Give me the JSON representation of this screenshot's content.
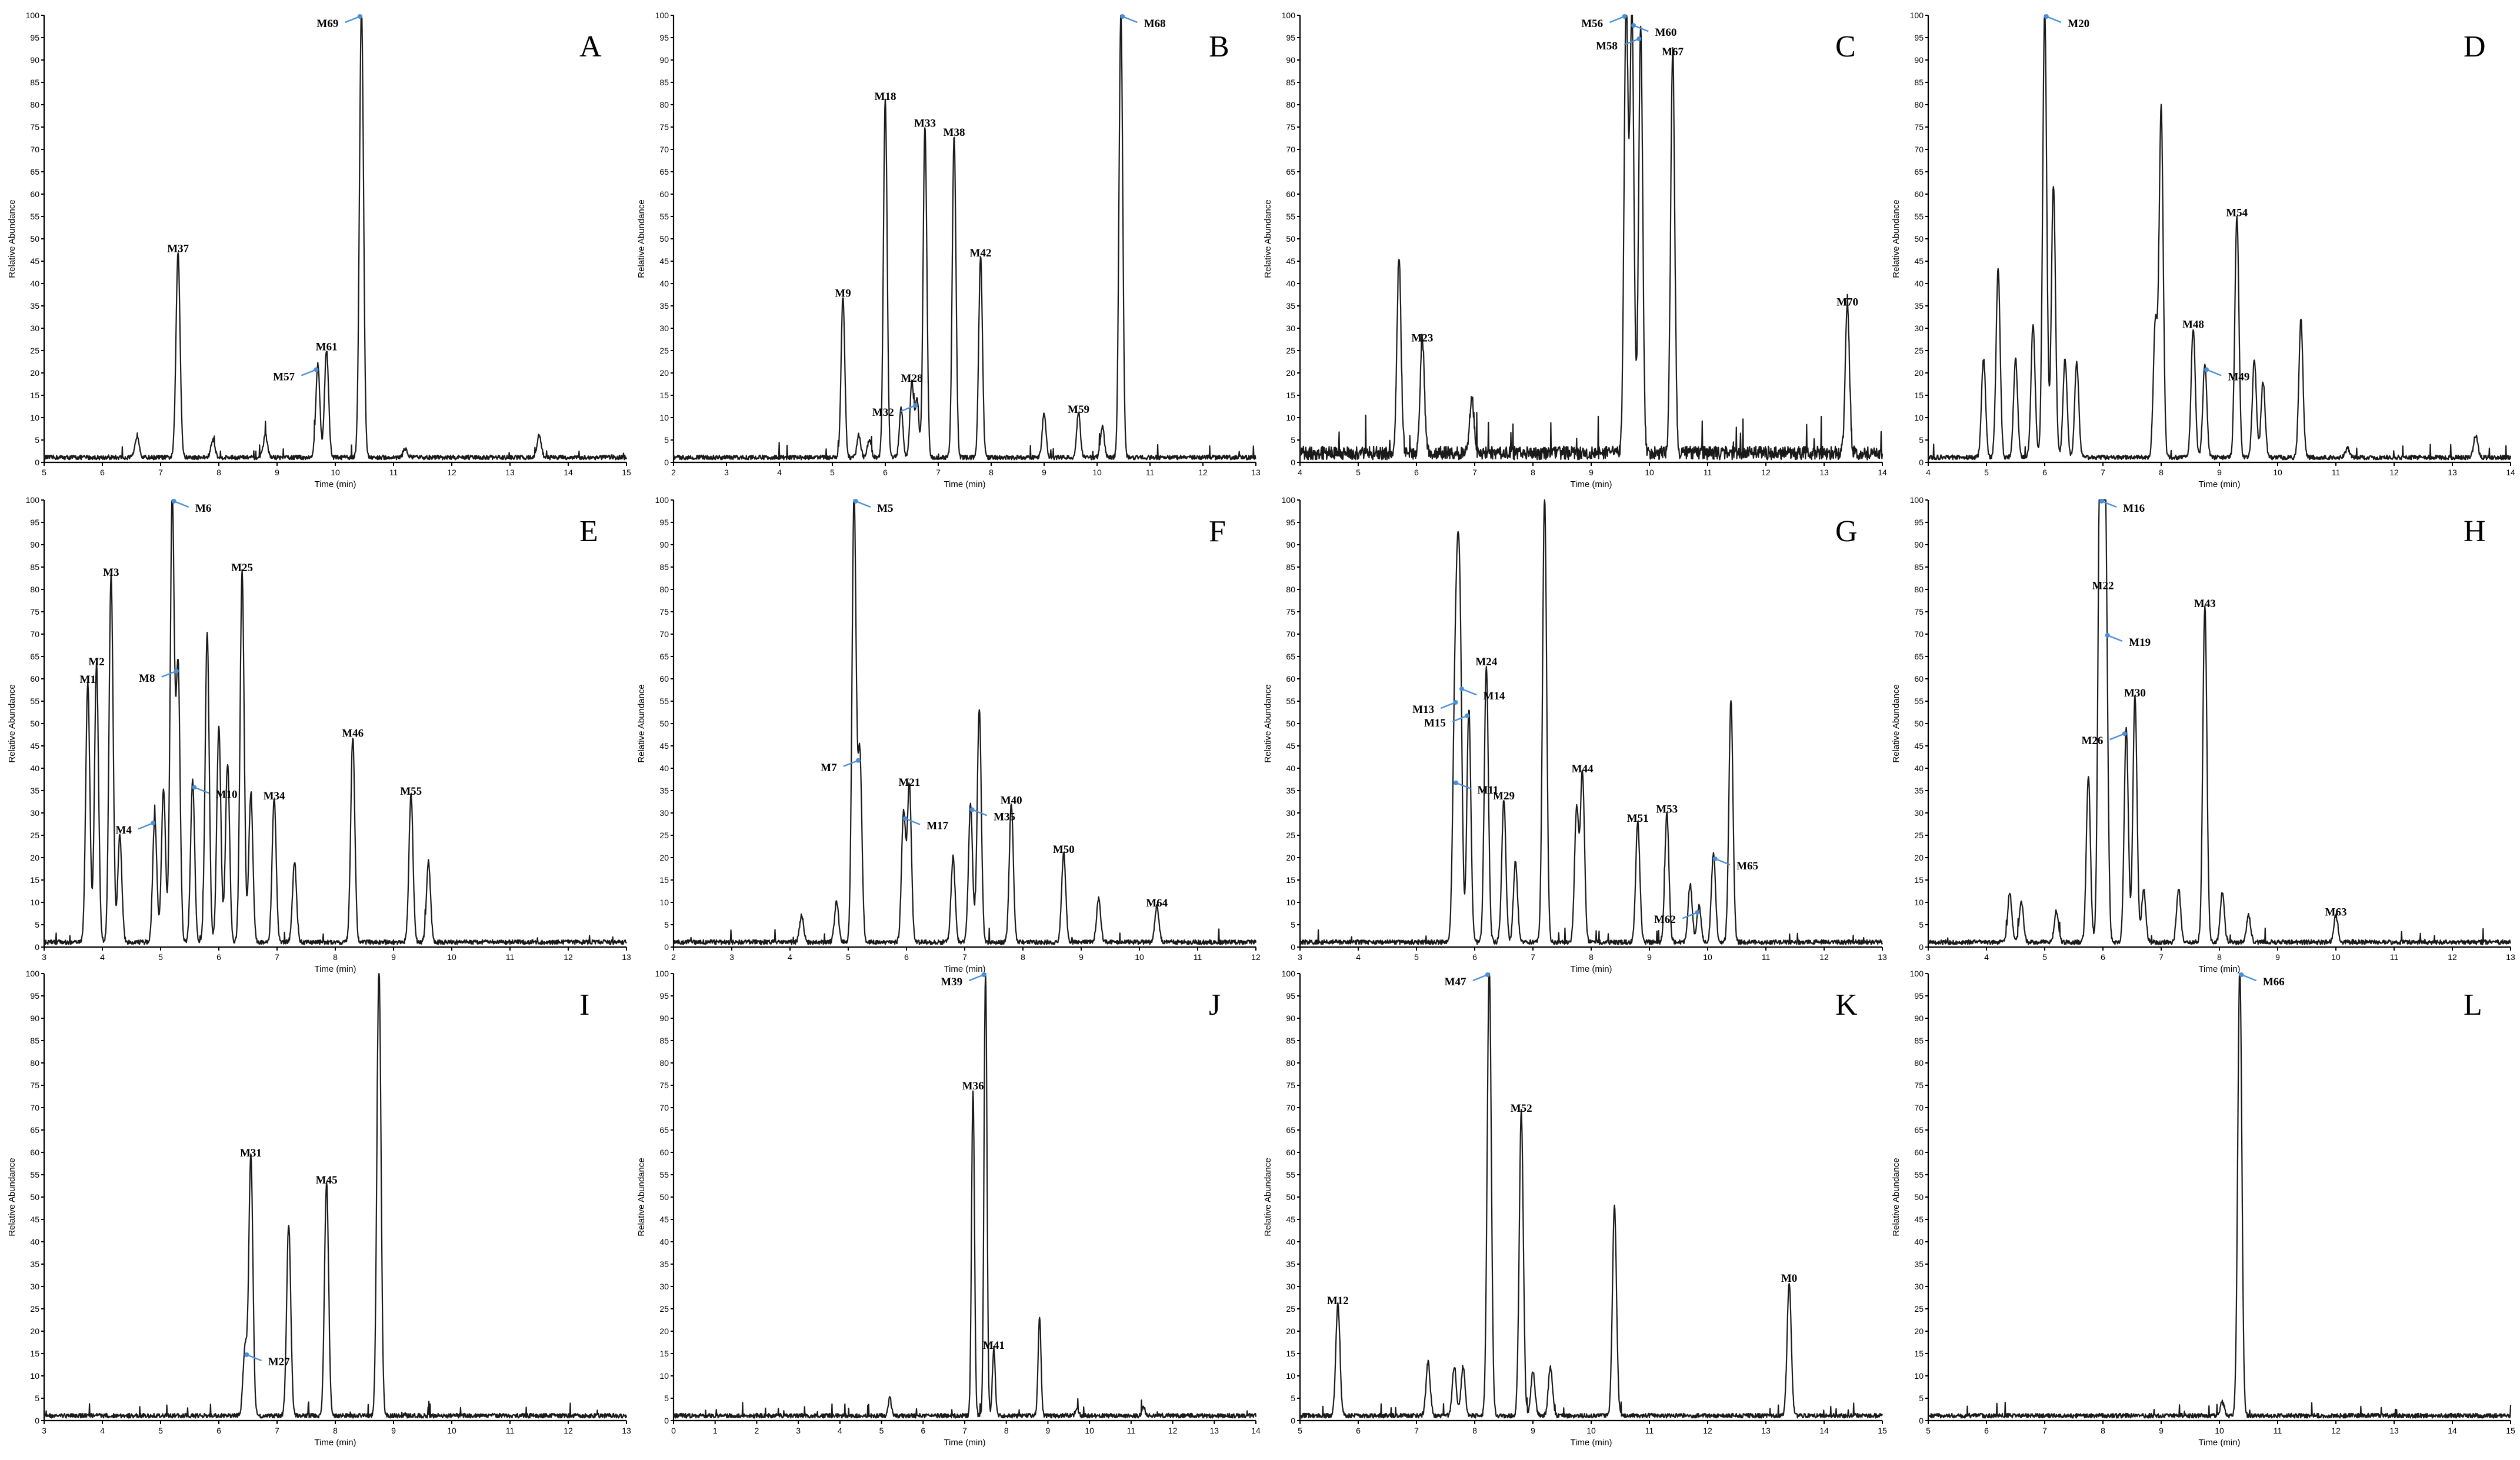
{
  "colors": {
    "trace": "#1a1a1a",
    "arrow": "#4a90d9",
    "axis": "#000000"
  },
  "chart_data": [
    {
      "type": "line",
      "panel": "A",
      "xlabel": "Time (min)",
      "ylabel": "Relative Abundance",
      "xlim": [
        5,
        15
      ],
      "ylim": [
        0,
        100
      ],
      "xticks": [
        "5",
        "6",
        "7",
        "8",
        "9",
        "10",
        "11",
        "12",
        "13",
        "14",
        "15"
      ],
      "peaks": [
        [
          6.6,
          5
        ],
        [
          7.3,
          46
        ],
        [
          7.9,
          4
        ],
        [
          8.8,
          5
        ],
        [
          9.7,
          21
        ],
        [
          9.85,
          24
        ],
        [
          10.45,
          100
        ],
        [
          11.2,
          2
        ],
        [
          13.5,
          5
        ]
      ],
      "labels": [
        {
          "text": "M37",
          "x": 7.3,
          "y": 46
        },
        {
          "text": "M57",
          "x": 9.7,
          "y": 21,
          "arrow": true
        },
        {
          "text": "M61",
          "x": 9.85,
          "y": 24
        },
        {
          "text": "M69",
          "x": 10.45,
          "y": 100,
          "arrow": true
        }
      ]
    },
    {
      "type": "line",
      "panel": "B",
      "xlabel": "Time (min)",
      "ylabel": "Relative Abundance",
      "xlim": [
        2,
        13
      ],
      "ylim": [
        0,
        100
      ],
      "xticks": [
        "2",
        "3",
        "4",
        "5",
        "6",
        "7",
        "8",
        "9",
        "10",
        "11",
        "12",
        "13"
      ],
      "peaks": [
        [
          5.2,
          36
        ],
        [
          5.5,
          5
        ],
        [
          5.7,
          4
        ],
        [
          6.0,
          80
        ],
        [
          6.3,
          11
        ],
        [
          6.5,
          17
        ],
        [
          6.6,
          13
        ],
        [
          6.75,
          74
        ],
        [
          7.3,
          72
        ],
        [
          7.8,
          45
        ],
        [
          9.0,
          10
        ],
        [
          9.65,
          10
        ],
        [
          10.1,
          7
        ],
        [
          10.45,
          100
        ]
      ],
      "labels": [
        {
          "text": "M9",
          "x": 5.2,
          "y": 36
        },
        {
          "text": "M18",
          "x": 6.0,
          "y": 80
        },
        {
          "text": "M28",
          "x": 6.5,
          "y": 17
        },
        {
          "text": "M32",
          "x": 6.6,
          "y": 13,
          "arrow": true
        },
        {
          "text": "M33",
          "x": 6.75,
          "y": 74
        },
        {
          "text": "M38",
          "x": 7.3,
          "y": 72
        },
        {
          "text": "M42",
          "x": 7.8,
          "y": 45
        },
        {
          "text": "M59",
          "x": 9.65,
          "y": 10
        },
        {
          "text": "M68",
          "x": 10.45,
          "y": 100,
          "arrow": true
        }
      ]
    },
    {
      "type": "line",
      "panel": "C",
      "xlabel": "Time (min)",
      "ylabel": "Relative Abundance",
      "xlim": [
        4,
        14
      ],
      "ylim": [
        0,
        100
      ],
      "xticks": [
        "4",
        "5",
        "6",
        "7",
        "8",
        "9",
        "10",
        "11",
        "12",
        "13",
        "14"
      ],
      "noise": 3,
      "peaks": [
        [
          5.7,
          44
        ],
        [
          6.1,
          26
        ],
        [
          6.95,
          13
        ],
        [
          9.6,
          100
        ],
        [
          9.7,
          98
        ],
        [
          9.85,
          95
        ],
        [
          10.4,
          90
        ],
        [
          13.4,
          34
        ]
      ],
      "labels": [
        {
          "text": "M23",
          "x": 6.1,
          "y": 26
        },
        {
          "text": "M56",
          "x": 9.6,
          "y": 100,
          "arrow": true
        },
        {
          "text": "M60",
          "x": 9.7,
          "y": 98,
          "arrow": true
        },
        {
          "text": "M58",
          "x": 9.85,
          "y": 95,
          "arrow": true
        },
        {
          "text": "M67",
          "x": 10.4,
          "y": 90
        },
        {
          "text": "M70",
          "x": 13.4,
          "y": 34
        }
      ]
    },
    {
      "type": "line",
      "panel": "D",
      "xlabel": "Time (min)",
      "ylabel": "Relative Abundance",
      "xlim": [
        4,
        14
      ],
      "ylim": [
        0,
        100
      ],
      "xticks": [
        "4",
        "5",
        "6",
        "7",
        "8",
        "9",
        "10",
        "11",
        "12",
        "13",
        "14"
      ],
      "peaks": [
        [
          4.95,
          22
        ],
        [
          5.2,
          42
        ],
        [
          5.5,
          22
        ],
        [
          5.8,
          30
        ],
        [
          6.0,
          100
        ],
        [
          6.15,
          61
        ],
        [
          6.35,
          22
        ],
        [
          6.55,
          21
        ],
        [
          7.9,
          30
        ],
        [
          8.0,
          78
        ],
        [
          8.55,
          29
        ],
        [
          8.75,
          21
        ],
        [
          9.3,
          54
        ],
        [
          9.6,
          22
        ],
        [
          9.75,
          17
        ],
        [
          10.4,
          31
        ],
        [
          11.2,
          2
        ],
        [
          13.4,
          5
        ]
      ],
      "labels": [
        {
          "text": "M20",
          "x": 6.0,
          "y": 100,
          "arrow": true
        },
        {
          "text": "M48",
          "x": 8.55,
          "y": 29
        },
        {
          "text": "M49",
          "x": 8.75,
          "y": 21,
          "arrow": true
        },
        {
          "text": "M54",
          "x": 9.3,
          "y": 54
        }
      ]
    },
    {
      "type": "line",
      "panel": "E",
      "xlabel": "Time (min)",
      "ylabel": "Relative Abundance",
      "xlim": [
        3,
        13
      ],
      "ylim": [
        0,
        100
      ],
      "xticks": [
        "3",
        "4",
        "5",
        "6",
        "7",
        "8",
        "9",
        "10",
        "11",
        "12",
        "13"
      ],
      "peaks": [
        [
          3.75,
          58
        ],
        [
          3.9,
          62
        ],
        [
          4.15,
          82
        ],
        [
          4.3,
          24
        ],
        [
          4.9,
          28
        ],
        [
          5.05,
          34
        ],
        [
          5.2,
          100
        ],
        [
          5.3,
          62
        ],
        [
          5.55,
          36
        ],
        [
          5.8,
          69
        ],
        [
          6.0,
          48
        ],
        [
          6.15,
          40
        ],
        [
          6.4,
          83
        ],
        [
          6.55,
          33
        ],
        [
          6.95,
          32
        ],
        [
          7.3,
          18
        ],
        [
          8.3,
          46
        ],
        [
          9.3,
          33
        ],
        [
          9.6,
          18
        ]
      ],
      "labels": [
        {
          "text": "M1",
          "x": 3.75,
          "y": 58
        },
        {
          "text": "M2",
          "x": 3.9,
          "y": 62
        },
        {
          "text": "M3",
          "x": 4.15,
          "y": 82
        },
        {
          "text": "M4",
          "x": 4.9,
          "y": 28,
          "arrow": true
        },
        {
          "text": "M6",
          "x": 5.2,
          "y": 100,
          "arrow": true
        },
        {
          "text": "M8",
          "x": 5.3,
          "y": 62,
          "arrow": true
        },
        {
          "text": "M10",
          "x": 5.55,
          "y": 36,
          "arrow": true
        },
        {
          "text": "M25",
          "x": 6.4,
          "y": 83
        },
        {
          "text": "M34",
          "x": 6.95,
          "y": 32
        },
        {
          "text": "M46",
          "x": 8.3,
          "y": 46
        },
        {
          "text": "M55",
          "x": 9.3,
          "y": 33
        }
      ]
    },
    {
      "type": "line",
      "panel": "F",
      "xlabel": "Time (min)",
      "ylabel": "Relative Abundance",
      "xlim": [
        2,
        12
      ],
      "ylim": [
        0,
        100
      ],
      "xticks": [
        "2",
        "3",
        "4",
        "5",
        "6",
        "7",
        "8",
        "9",
        "10",
        "11",
        "12"
      ],
      "peaks": [
        [
          4.2,
          6
        ],
        [
          4.8,
          9
        ],
        [
          5.1,
          100
        ],
        [
          5.2,
          42
        ],
        [
          5.95,
          29
        ],
        [
          6.05,
          35
        ],
        [
          6.8,
          19
        ],
        [
          7.1,
          31
        ],
        [
          7.25,
          52
        ],
        [
          7.8,
          31
        ],
        [
          8.7,
          20
        ],
        [
          9.3,
          10
        ],
        [
          10.3,
          8
        ]
      ],
      "labels": [
        {
          "text": "M5",
          "x": 5.1,
          "y": 100,
          "arrow": true
        },
        {
          "text": "M7",
          "x": 5.2,
          "y": 42,
          "arrow": true
        },
        {
          "text": "M17",
          "x": 5.95,
          "y": 29,
          "arrow": true
        },
        {
          "text": "M21",
          "x": 6.05,
          "y": 35
        },
        {
          "text": "M35",
          "x": 7.1,
          "y": 31,
          "arrow": true
        },
        {
          "text": "M40",
          "x": 7.8,
          "y": 31
        },
        {
          "text": "M50",
          "x": 8.7,
          "y": 20
        },
        {
          "text": "M64",
          "x": 10.3,
          "y": 8
        }
      ]
    },
    {
      "type": "line",
      "panel": "G",
      "xlabel": "Time (min)",
      "ylabel": "Relative Abundance",
      "xlim": [
        3,
        13
      ],
      "ylim": [
        0,
        100
      ],
      "xticks": [
        "3",
        "4",
        "5",
        "6",
        "7",
        "8",
        "9",
        "10",
        "11",
        "12",
        "13"
      ],
      "peaks": [
        [
          5.65,
          37
        ],
        [
          5.7,
          55
        ],
        [
          5.75,
          58
        ],
        [
          5.9,
          52
        ],
        [
          6.2,
          62
        ],
        [
          6.5,
          32
        ],
        [
          6.7,
          18
        ],
        [
          7.2,
          100
        ],
        [
          7.75,
          30
        ],
        [
          7.85,
          38
        ],
        [
          8.8,
          27
        ],
        [
          9.3,
          29
        ],
        [
          9.7,
          13
        ],
        [
          9.85,
          8
        ],
        [
          10.1,
          20
        ],
        [
          10.4,
          54
        ]
      ],
      "labels": [
        {
          "text": "M11",
          "x": 5.65,
          "y": 37,
          "arrow": true
        },
        {
          "text": "M13",
          "x": 5.7,
          "y": 55,
          "arrow": true
        },
        {
          "text": "M14",
          "x": 5.75,
          "y": 58,
          "arrow": true
        },
        {
          "text": "M15",
          "x": 5.9,
          "y": 52,
          "arrow": true
        },
        {
          "text": "M24",
          "x": 6.2,
          "y": 62
        },
        {
          "text": "M29",
          "x": 6.5,
          "y": 32
        },
        {
          "text": "M44",
          "x": 7.85,
          "y": 38
        },
        {
          "text": "M51",
          "x": 8.8,
          "y": 27
        },
        {
          "text": "M53",
          "x": 9.3,
          "y": 29
        },
        {
          "text": "M62",
          "x": 9.85,
          "y": 8,
          "arrow": true
        },
        {
          "text": "M65",
          "x": 10.1,
          "y": 20,
          "arrow": true
        }
      ]
    },
    {
      "type": "line",
      "panel": "H",
      "xlabel": "Time (min)",
      "ylabel": "Relative Abundance",
      "xlim": [
        3,
        13
      ],
      "ylim": [
        0,
        100
      ],
      "xticks": [
        "3",
        "4",
        "5",
        "6",
        "7",
        "8",
        "9",
        "10",
        "11",
        "12",
        "13"
      ],
      "peaks": [
        [
          4.4,
          11
        ],
        [
          4.6,
          9
        ],
        [
          5.2,
          7
        ],
        [
          5.75,
          37
        ],
        [
          5.95,
          100
        ],
        [
          6.0,
          79
        ],
        [
          6.05,
          70
        ],
        [
          6.4,
          48
        ],
        [
          6.55,
          55
        ],
        [
          6.7,
          12
        ],
        [
          7.3,
          12
        ],
        [
          7.75,
          75
        ],
        [
          8.05,
          11
        ],
        [
          8.5,
          6
        ],
        [
          10.0,
          6
        ]
      ],
      "labels": [
        {
          "text": "M16",
          "x": 5.95,
          "y": 100,
          "arrow": true
        },
        {
          "text": "M22",
          "x": 6.0,
          "y": 79
        },
        {
          "text": "M19",
          "x": 6.05,
          "y": 70,
          "arrow": true
        },
        {
          "text": "M26",
          "x": 6.4,
          "y": 48,
          "arrow": true
        },
        {
          "text": "M30",
          "x": 6.55,
          "y": 55
        },
        {
          "text": "M43",
          "x": 7.75,
          "y": 75
        },
        {
          "text": "M63",
          "x": 10.0,
          "y": 6
        }
      ]
    },
    {
      "type": "line",
      "panel": "I",
      "xlabel": "Time (min)",
      "ylabel": "Relative Abundance",
      "xlim": [
        3,
        13
      ],
      "ylim": [
        0,
        100
      ],
      "xticks": [
        "3",
        "4",
        "5",
        "6",
        "7",
        "8",
        "9",
        "10",
        "11",
        "12",
        "13"
      ],
      "peaks": [
        [
          6.45,
          15
        ],
        [
          6.55,
          58
        ],
        [
          7.2,
          43
        ],
        [
          7.85,
          52
        ],
        [
          8.75,
          100
        ]
      ],
      "labels": [
        {
          "text": "M27",
          "x": 6.45,
          "y": 15,
          "arrow": true
        },
        {
          "text": "M31",
          "x": 6.55,
          "y": 58
        },
        {
          "text": "M45",
          "x": 7.85,
          "y": 52
        }
      ]
    },
    {
      "type": "line",
      "panel": "J",
      "xlabel": "Time (min)",
      "ylabel": "Relative Abundance",
      "xlim": [
        0,
        14
      ],
      "ylim": [
        0,
        100
      ],
      "xticks": [
        "0",
        "1",
        "2",
        "3",
        "4",
        "5",
        "6",
        "7",
        "8",
        "9",
        "10",
        "11",
        "12",
        "13",
        "14"
      ],
      "peaks": [
        [
          5.2,
          4
        ],
        [
          7.2,
          73
        ],
        [
          7.5,
          100
        ],
        [
          7.7,
          15
        ],
        [
          8.8,
          22
        ],
        [
          9.7,
          2
        ],
        [
          11.3,
          2
        ]
      ],
      "labels": [
        {
          "text": "M36",
          "x": 7.2,
          "y": 73
        },
        {
          "text": "M39",
          "x": 7.5,
          "y": 100,
          "arrow": true
        },
        {
          "text": "M41",
          "x": 7.7,
          "y": 15
        }
      ]
    },
    {
      "type": "line",
      "panel": "K",
      "xlabel": "Time (min)",
      "ylabel": "Relative Abundance",
      "xlim": [
        5,
        15
      ],
      "ylim": [
        0,
        100
      ],
      "xticks": [
        "5",
        "6",
        "7",
        "8",
        "9",
        "10",
        "11",
        "12",
        "13",
        "14",
        "15"
      ],
      "peaks": [
        [
          5.65,
          25
        ],
        [
          7.2,
          12
        ],
        [
          7.65,
          11
        ],
        [
          7.8,
          11
        ],
        [
          8.25,
          100
        ],
        [
          8.8,
          68
        ],
        [
          9.0,
          10
        ],
        [
          9.3,
          11
        ],
        [
          10.4,
          47
        ],
        [
          13.4,
          30
        ]
      ],
      "labels": [
        {
          "text": "M12",
          "x": 5.65,
          "y": 25
        },
        {
          "text": "M47",
          "x": 8.25,
          "y": 100,
          "arrow": true
        },
        {
          "text": "M52",
          "x": 8.8,
          "y": 68
        },
        {
          "text": "M0",
          "x": 13.4,
          "y": 30
        }
      ]
    },
    {
      "type": "line",
      "panel": "L",
      "xlabel": "Time (min)",
      "ylabel": "Relative Abundance",
      "xlim": [
        5,
        15
      ],
      "ylim": [
        0,
        100
      ],
      "xticks": [
        "5",
        "6",
        "7",
        "8",
        "9",
        "10",
        "11",
        "12",
        "13",
        "14",
        "15"
      ],
      "peaks": [
        [
          10.05,
          3
        ],
        [
          10.35,
          100
        ]
      ],
      "labels": [
        {
          "text": "M66",
          "x": 10.35,
          "y": 100,
          "arrow": true
        }
      ]
    }
  ],
  "yticks": [
    "0",
    "5",
    "10",
    "15",
    "20",
    "25",
    "30",
    "35",
    "40",
    "45",
    "50",
    "55",
    "60",
    "65",
    "70",
    "75",
    "80",
    "85",
    "90",
    "95",
    "100"
  ]
}
